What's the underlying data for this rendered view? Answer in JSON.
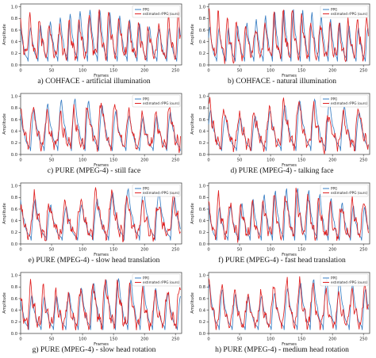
{
  "colors": {
    "ppg": "#3a7fc4",
    "rppg": "#e02020",
    "axis": "#333333"
  },
  "chart_data": [
    {
      "type": "line",
      "caption": "a) COHFACE - artificial illumination",
      "xlabel": "Frames",
      "ylabel": "Amplitude",
      "xlim": [
        0,
        260
      ],
      "ylim": [
        0,
        1.05
      ],
      "xticks": [
        0,
        50,
        100,
        150,
        200,
        250
      ],
      "yticks": [
        0.0,
        0.2,
        0.4,
        0.6,
        0.8,
        1.0
      ],
      "legend_position": "top-right",
      "period": 16,
      "phase": 4,
      "seed": 11,
      "series": [
        {
          "name": "PPG",
          "color": "#3a7fc4"
        },
        {
          "name": "estimated rPPG (ours)",
          "color": "#e02020"
        }
      ]
    },
    {
      "type": "line",
      "caption": "b) COHFACE - natural illumination",
      "xlabel": "Frames",
      "ylabel": "Amplitude",
      "xlim": [
        0,
        260
      ],
      "ylim": [
        0,
        1.05
      ],
      "xticks": [
        0,
        50,
        100,
        150,
        200,
        250
      ],
      "yticks": [
        0.0,
        0.2,
        0.4,
        0.6,
        0.8,
        1.0
      ],
      "legend_position": "top-right",
      "period": 15,
      "phase": 2,
      "seed": 23,
      "series": [
        {
          "name": "PPG",
          "color": "#3a7fc4"
        },
        {
          "name": "estimated rPPG (ours)",
          "color": "#e02020"
        }
      ]
    },
    {
      "type": "line",
      "caption": "c) PURE (MPEG-4) - still face",
      "xlabel": "Frames",
      "ylabel": "Amplitude",
      "xlim": [
        0,
        260
      ],
      "ylim": [
        0,
        1.05
      ],
      "xticks": [
        0,
        50,
        100,
        150,
        200,
        250
      ],
      "yticks": [
        0.0,
        0.2,
        0.4,
        0.6,
        0.8,
        1.0
      ],
      "legend_position": "top-right",
      "period": 22,
      "phase": 6,
      "seed": 37,
      "series": [
        {
          "name": "PPG",
          "color": "#3a7fc4"
        },
        {
          "name": "estimated rPPG (ours)",
          "color": "#e02020"
        }
      ]
    },
    {
      "type": "line",
      "caption": "d) PURE (MPEG-4) - talking face",
      "xlabel": "Frames",
      "ylabel": "Amplitude",
      "xlim": [
        0,
        260
      ],
      "ylim": [
        0,
        1.05
      ],
      "xticks": [
        0,
        50,
        100,
        150,
        200,
        250
      ],
      "yticks": [
        0.0,
        0.2,
        0.4,
        0.6,
        0.8,
        1.0
      ],
      "legend_position": "top-right",
      "period": 24,
      "phase": 3,
      "seed": 41,
      "series": [
        {
          "name": "PPG",
          "color": "#3a7fc4"
        },
        {
          "name": "estimated rPPG (ours)",
          "color": "#e02020"
        }
      ]
    },
    {
      "type": "line",
      "caption": "e) PURE (MPEG-4) - slow head translation",
      "xlabel": "Frames",
      "ylabel": "Amplitude",
      "xlim": [
        0,
        260
      ],
      "ylim": [
        0,
        1.05
      ],
      "xticks": [
        0,
        50,
        100,
        150,
        200,
        250
      ],
      "yticks": [
        0.0,
        0.2,
        0.4,
        0.6,
        0.8,
        1.0
      ],
      "legend_position": "top-right",
      "period": 25,
      "phase": 8,
      "seed": 53,
      "series": [
        {
          "name": "PPG",
          "color": "#3a7fc4"
        },
        {
          "name": "estimated rPPG (ours)",
          "color": "#e02020"
        }
      ]
    },
    {
      "type": "line",
      "caption": "f) PURE (MPEG-4) - fast head translation",
      "xlabel": "Frames",
      "ylabel": "Amplitude",
      "xlim": [
        0,
        260
      ],
      "ylim": [
        0,
        1.05
      ],
      "xticks": [
        0,
        50,
        100,
        150,
        200,
        250
      ],
      "yticks": [
        0.0,
        0.2,
        0.4,
        0.6,
        0.8,
        1.0
      ],
      "legend_position": "top-right",
      "period": 18,
      "phase": 5,
      "seed": 67,
      "series": [
        {
          "name": "PPG",
          "color": "#3a7fc4"
        },
        {
          "name": "estimated rPPG (ours)",
          "color": "#e02020"
        }
      ]
    },
    {
      "type": "line",
      "caption": "g) PURE (MPEG-4) - slow head rotation",
      "xlabel": "Frames",
      "ylabel": "Amplitude",
      "xlim": [
        0,
        260
      ],
      "ylim": [
        0,
        1.05
      ],
      "xticks": [
        0,
        50,
        100,
        150,
        200,
        250
      ],
      "yticks": [
        0.0,
        0.2,
        0.4,
        0.6,
        0.8,
        1.0
      ],
      "legend_position": "top-right",
      "period": 20,
      "phase": 7,
      "seed": 79,
      "series": [
        {
          "name": "PPG",
          "color": "#3a7fc4"
        },
        {
          "name": "estimated rPPG (ours)",
          "color": "#e02020"
        }
      ]
    },
    {
      "type": "line",
      "caption": "h) PURE (MPEG-4) - medium head rotation",
      "xlabel": "Frames",
      "ylabel": "Amplitude",
      "xlim": [
        0,
        260
      ],
      "ylim": [
        0,
        1.05
      ],
      "xticks": [
        0,
        50,
        100,
        150,
        200,
        250
      ],
      "yticks": [
        0.0,
        0.2,
        0.4,
        0.6,
        0.8,
        1.0
      ],
      "legend_position": "top-right",
      "period": 21,
      "phase": 4,
      "seed": 97,
      "series": [
        {
          "name": "PPG",
          "color": "#3a7fc4"
        },
        {
          "name": "estimated rPPG (ours)",
          "color": "#e02020"
        }
      ]
    }
  ]
}
